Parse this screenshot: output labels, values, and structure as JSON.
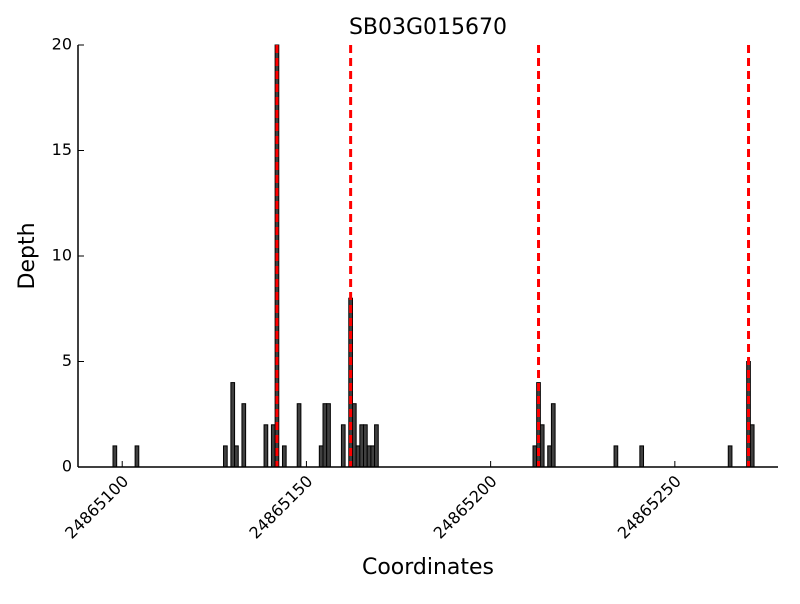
{
  "chart_data": {
    "type": "bar",
    "title": "SB03G015670",
    "xlabel": "Coordinates",
    "ylabel": "Depth",
    "x": [
      24865098,
      24865104,
      24865128,
      24865130,
      24865131,
      24865133,
      24865139,
      24865141,
      24865142,
      24865144,
      24865148,
      24865154,
      24865155,
      24865156,
      24865160,
      24865162,
      24865163,
      24865164,
      24865165,
      24865166,
      24865167,
      24865168,
      24865169,
      24865212,
      24865213,
      24865214,
      24865216,
      24865217,
      24865234,
      24865241,
      24865265,
      24865270,
      24865271
    ],
    "values": [
      1,
      1,
      1,
      4,
      1,
      3,
      2,
      2,
      20,
      1,
      3,
      1,
      3,
      3,
      2,
      8,
      3,
      1,
      2,
      2,
      1,
      1,
      2,
      1,
      4,
      2,
      1,
      3,
      1,
      1,
      1,
      5,
      2
    ],
    "color": "#404040",
    "vlines": [
      24865142,
      24865162,
      24865213,
      24865270
    ],
    "vline_color": "#ff0000",
    "xlim": [
      24865088,
      24865278
    ],
    "xticks": [
      24865100,
      24865150,
      24865200,
      24865250
    ],
    "ylim": [
      0,
      20
    ],
    "yticks": [
      0,
      5,
      10,
      15,
      20
    ],
    "grid": false
  }
}
